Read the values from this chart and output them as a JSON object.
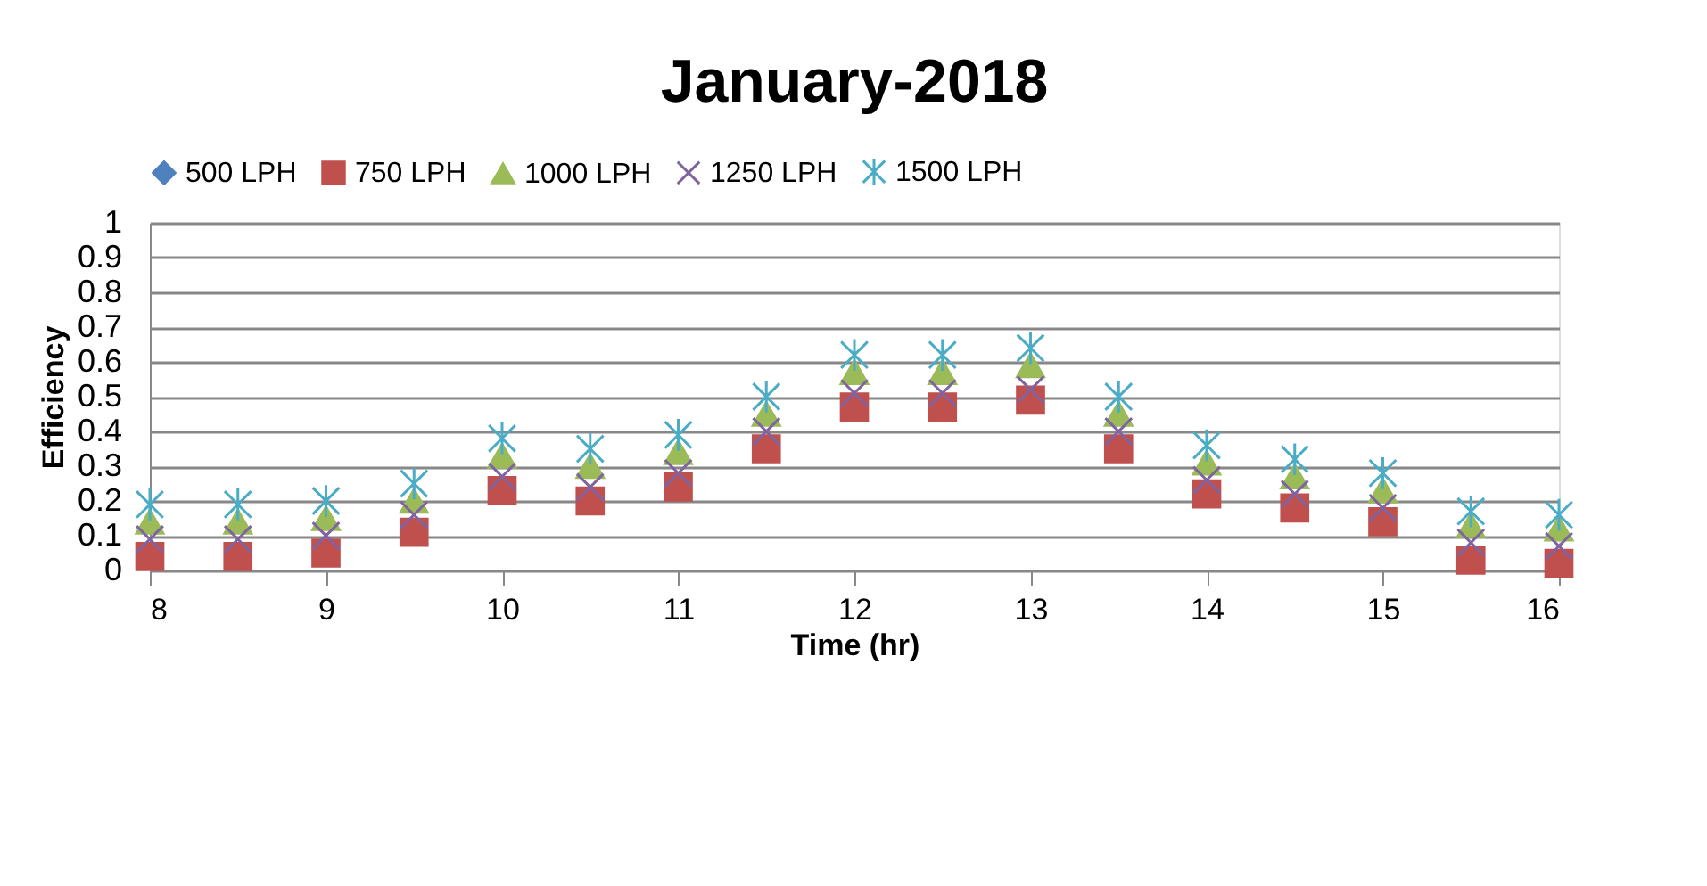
{
  "chart_data": {
    "type": "scatter",
    "title": "January-2018",
    "xlabel": "Time (hr)",
    "ylabel": "Efficiency",
    "x": [
      8,
      8.5,
      9,
      9.5,
      10,
      10.5,
      11,
      11.5,
      12,
      12.5,
      13,
      13.5,
      14,
      14.5,
      15,
      15.5,
      16
    ],
    "series": [
      {
        "name": "500 LPH",
        "color": "#4f81bd",
        "marker": "diamond",
        "values": [
          null,
          null,
          null,
          null,
          null,
          null,
          null,
          null,
          null,
          null,
          null,
          null,
          null,
          null,
          null,
          null,
          null
        ]
      },
      {
        "name": "750 LPH",
        "color": "#c0504d",
        "marker": "square",
        "values": [
          0.04,
          0.04,
          0.05,
          0.11,
          0.23,
          0.2,
          0.24,
          0.35,
          0.47,
          0.47,
          0.49,
          0.35,
          0.22,
          0.18,
          0.14,
          0.03,
          0.02
        ]
      },
      {
        "name": "1000 LPH",
        "color": "#9bbb59",
        "marker": "triangle",
        "values": [
          0.14,
          0.14,
          0.15,
          0.2,
          0.33,
          0.3,
          0.34,
          0.45,
          0.57,
          0.57,
          0.59,
          0.45,
          0.31,
          0.27,
          0.23,
          0.13,
          0.12
        ]
      },
      {
        "name": "1250 LPH",
        "color": "#8064a2",
        "marker": "cross",
        "values": [
          0.09,
          0.09,
          0.1,
          0.16,
          0.27,
          0.24,
          0.28,
          0.4,
          0.51,
          0.51,
          0.52,
          0.4,
          0.26,
          0.22,
          0.18,
          0.08,
          0.07
        ]
      },
      {
        "name": "1500 LPH",
        "color": "#4bacc6",
        "marker": "cross",
        "values": [
          0.19,
          0.19,
          0.2,
          0.25,
          0.38,
          0.35,
          0.39,
          0.5,
          0.62,
          0.62,
          0.64,
          0.5,
          0.36,
          0.32,
          0.28,
          0.17,
          0.16
        ]
      }
    ],
    "xlim": [
      8,
      16
    ],
    "xticks": [
      8,
      9,
      10,
      11,
      12,
      13,
      14,
      15,
      16
    ],
    "ylim": [
      0,
      1
    ],
    "yticks": [
      0,
      0.1,
      0.2,
      0.3,
      0.4,
      0.5,
      0.6,
      0.7,
      0.8,
      0.9,
      1
    ],
    "grid": "y",
    "legend": "top"
  }
}
